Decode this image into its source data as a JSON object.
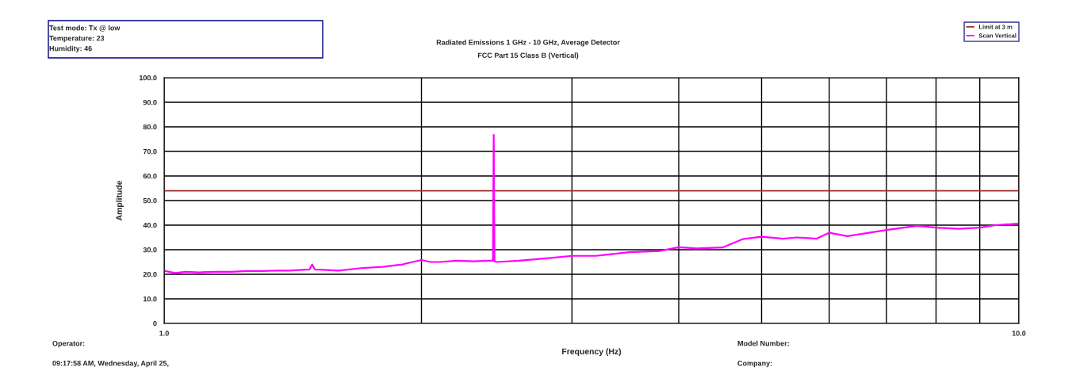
{
  "chart_data": {
    "type": "line",
    "subtitle": "Radiated Emissions 1 GHz - 10 GHz, Average Detector\nFCC Part 15 Class B (Vertical)",
    "xlabel": "Frequency (Hz)",
    "ylabel": "Amplitude",
    "annotations": [
      "Test mode: Tx @ low",
      "Temperature: 23",
      "Humidity: 46",
      "Operator:",
      "09:17:58 AM, Wednesday, April 25,",
      "Model Number:",
      "Company:"
    ],
    "series": [
      {
        "name": "Limit at 3 m",
        "color": "#a03030",
        "x": [
          1,
          10
        ],
        "values": [
          54,
          54
        ]
      },
      {
        "name": "Scan Vertical",
        "color": "#ff00ff",
        "x": [
          1.0,
          1.03,
          1.06,
          1.1,
          1.15,
          1.2,
          1.25,
          1.3,
          1.35,
          1.4,
          1.48,
          1.49,
          1.5,
          1.6,
          1.7,
          1.8,
          1.9,
          2.0,
          2.05,
          2.1,
          2.2,
          2.3,
          2.4,
          2.425,
          2.43,
          2.435,
          2.45,
          2.6,
          2.8,
          3.0,
          3.2,
          3.5,
          3.8,
          4.0,
          4.2,
          4.5,
          4.75,
          5.0,
          5.3,
          5.5,
          5.8,
          6.0,
          6.3,
          6.7,
          7.0,
          7.6,
          8.0,
          8.5,
          9.0,
          9.4,
          10.0
        ],
        "values": [
          21.4,
          20.5,
          21,
          20.8,
          21,
          21,
          21.3,
          21.3,
          21.5,
          21.5,
          22,
          24,
          22,
          21.5,
          22.5,
          23,
          24,
          25.8,
          25,
          25,
          25.5,
          25.3,
          25.5,
          25.5,
          76.7,
          25.3,
          25,
          25.5,
          26.5,
          27.5,
          27.5,
          29,
          29.5,
          31,
          30.5,
          30.9,
          34.3,
          35.3,
          34.5,
          35,
          34.5,
          36.9,
          35.5,
          37,
          38,
          39.7,
          39,
          38.5,
          39,
          40,
          40.6
        ]
      }
    ],
    "xlim": [
      1,
      10
    ],
    "ylim": [
      0,
      100
    ],
    "log": "x",
    "xticks": [
      {
        "value": 1,
        "label": "1.0"
      },
      {
        "value": 2,
        "label": null
      },
      {
        "value": 3,
        "label": null
      },
      {
        "value": 4,
        "label": null
      },
      {
        "value": 5,
        "label": null
      },
      {
        "value": 6,
        "label": null
      },
      {
        "value": 7,
        "label": null
      },
      {
        "value": 8,
        "label": null
      },
      {
        "value": 9,
        "label": null
      },
      {
        "value": 10,
        "label": "10.0"
      }
    ],
    "yticks": [
      {
        "value": 0,
        "label": "0"
      },
      {
        "value": 10,
        "label": "10.0"
      },
      {
        "value": 20,
        "label": "20.0"
      },
      {
        "value": 30,
        "label": "30.0"
      },
      {
        "value": 40,
        "label": "40.0"
      },
      {
        "value": 50,
        "label": "50.0"
      },
      {
        "value": 60,
        "label": "60.0"
      },
      {
        "value": 70,
        "label": "70.0"
      },
      {
        "value": 80,
        "label": "80.0"
      },
      {
        "value": 90,
        "label": "90.0"
      },
      {
        "value": 100,
        "label": "100.0"
      }
    ],
    "grid": true,
    "legend": "top right",
    "marker": "none",
    "line_style": "solid"
  }
}
